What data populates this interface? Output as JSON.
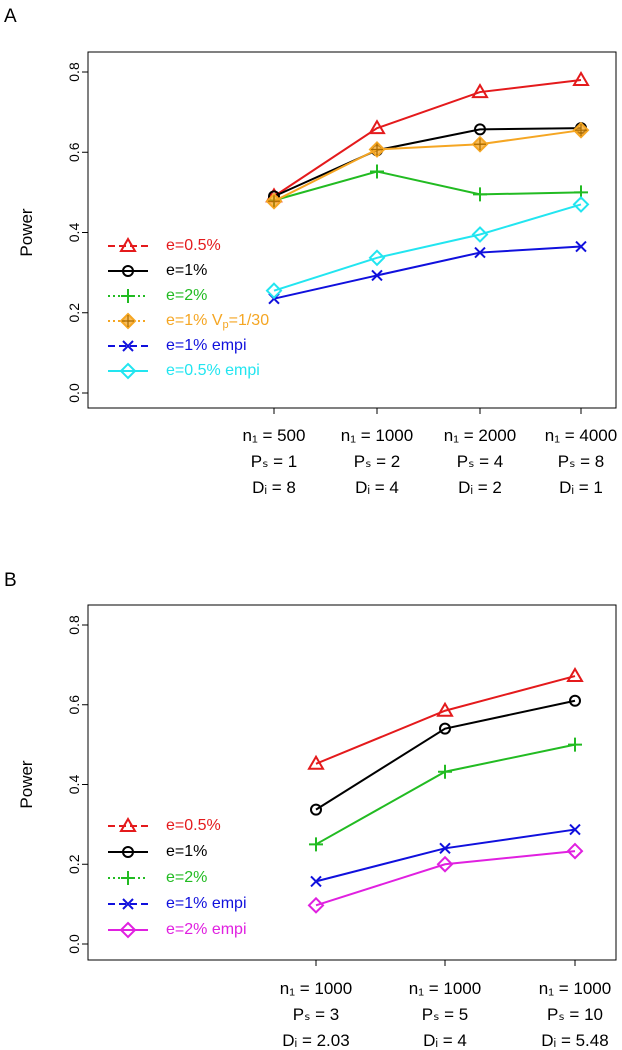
{
  "chart_data": [
    {
      "panel": "A",
      "type": "line",
      "ylabel": "Power",
      "ylim": [
        0,
        0.8
      ],
      "yticks": [
        "0.0",
        "0.2",
        "0.4",
        "0.6",
        "0.8"
      ],
      "categories": [
        [
          "n₁ = 500",
          "Pₛ = 1",
          "Dᵢ = 8"
        ],
        [
          "n₁ = 1000",
          "Pₛ = 2",
          "Dᵢ = 4"
        ],
        [
          "n₁ = 2000",
          "Pₛ = 4",
          "Dᵢ = 2"
        ],
        [
          "n₁ = 4000",
          "Pₛ = 8",
          "Dᵢ = 1"
        ]
      ],
      "series": [
        {
          "name": "e=0.5%",
          "color": "#e41a1c",
          "marker": "triangle",
          "linestyle": "dashed",
          "values": [
            0.49,
            0.66,
            0.75,
            0.78
          ]
        },
        {
          "name": "e=1%",
          "color": "#000000",
          "marker": "circle",
          "linestyle": "solid",
          "values": [
            0.49,
            0.605,
            0.657,
            0.66
          ]
        },
        {
          "name": "e=2%",
          "color": "#22bb22",
          "marker": "plus",
          "linestyle": "dotted",
          "values": [
            0.48,
            0.552,
            0.495,
            0.5
          ]
        },
        {
          "name": "e=1%  Vₚ=1/30",
          "color": "#f5a623",
          "marker": "diamondplus",
          "linestyle": "dotted",
          "values": [
            0.478,
            0.607,
            0.62,
            0.655
          ]
        },
        {
          "name": "e=1%  empi",
          "color": "#1010dd",
          "marker": "x",
          "linestyle": "dashed",
          "values": [
            0.235,
            0.293,
            0.35,
            0.365
          ]
        },
        {
          "name": "e=0.5%  empi",
          "color": "#22e5f0",
          "marker": "diamond",
          "linestyle": "solid",
          "values": [
            0.255,
            0.337,
            0.395,
            0.47
          ]
        }
      ]
    },
    {
      "panel": "B",
      "type": "line",
      "ylabel": "Power",
      "ylim": [
        0,
        0.8
      ],
      "yticks": [
        "0.0",
        "0.2",
        "0.4",
        "0.6",
        "0.8"
      ],
      "categories": [
        [
          "n₁ = 1000",
          "Pₛ = 3",
          "Dᵢ = 2.03"
        ],
        [
          "n₁ = 1000",
          "Pₛ = 5",
          "Dᵢ = 4"
        ],
        [
          "n₁ = 1000",
          "Pₛ = 10",
          "Dᵢ = 5.48"
        ]
      ],
      "series": [
        {
          "name": "e=0.5%",
          "color": "#e41a1c",
          "marker": "triangle",
          "linestyle": "dashed",
          "values": [
            0.452,
            0.585,
            0.672
          ]
        },
        {
          "name": "e=1%",
          "color": "#000000",
          "marker": "circle",
          "linestyle": "solid",
          "values": [
            0.337,
            0.54,
            0.61
          ]
        },
        {
          "name": "e=2%",
          "color": "#22bb22",
          "marker": "plus",
          "linestyle": "dotted",
          "values": [
            0.25,
            0.432,
            0.5
          ]
        },
        {
          "name": "e=1%  empi",
          "color": "#1010dd",
          "marker": "x",
          "linestyle": "dashed",
          "values": [
            0.157,
            0.24,
            0.287
          ]
        },
        {
          "name": "e=2%  empi",
          "color": "#e020e0",
          "marker": "diamond",
          "linestyle": "solid",
          "values": [
            0.097,
            0.2,
            0.233
          ]
        }
      ]
    }
  ]
}
